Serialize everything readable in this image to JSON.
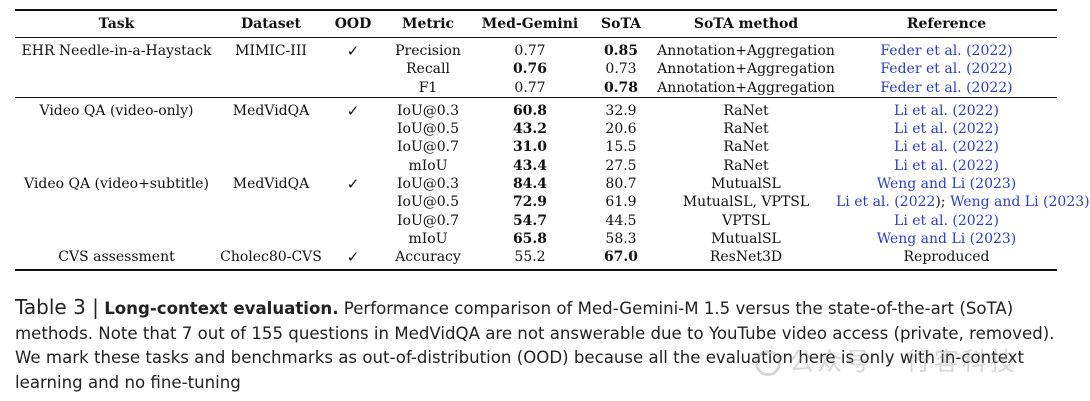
{
  "table": {
    "headers": {
      "task": "Task",
      "dataset": "Dataset",
      "ood": "OOD",
      "metric": "Metric",
      "med_gemini": "Med-Gemini",
      "sota": "SoTA",
      "sota_method": "SoTA method",
      "reference": "Reference"
    },
    "rows": [
      {
        "task": "EHR Needle-in-a-Haystack",
        "dataset": "MIMIC-III",
        "ood": "✓",
        "metric": "Precision",
        "med_gemini": "0.77",
        "sota": "0.85",
        "method": "Annotation+Aggregation",
        "ref_author": "Feder et al. (",
        "ref_year": "2022",
        "ref_close": ")"
      },
      {
        "task": "",
        "dataset": "",
        "ood": "",
        "metric": "Recall",
        "med_gemini": "0.76",
        "sota": "0.73",
        "method": "Annotation+Aggregation",
        "ref_author": "Feder et al. (",
        "ref_year": "2022",
        "ref_close": ")"
      },
      {
        "task": "",
        "dataset": "",
        "ood": "",
        "metric": "F1",
        "med_gemini": "0.77",
        "sota": "0.78",
        "method": "Annotation+Aggregation",
        "ref_author": "Feder et al. (",
        "ref_year": "2022",
        "ref_close": ")"
      },
      {
        "task": "Video QA (video-only)",
        "dataset": "MedVidQA",
        "ood": "✓",
        "metric": "IoU@0.3",
        "med_gemini": "60.8",
        "sota": "32.9",
        "method": "RaNet",
        "ref_author": "Li et al. (",
        "ref_year": "2022",
        "ref_close": ")"
      },
      {
        "task": "",
        "dataset": "",
        "ood": "",
        "metric": "IoU@0.5",
        "med_gemini": "43.2",
        "sota": "20.6",
        "method": "RaNet",
        "ref_author": "Li et al. (",
        "ref_year": "2022",
        "ref_close": ")"
      },
      {
        "task": "",
        "dataset": "",
        "ood": "",
        "metric": "IoU@0.7",
        "med_gemini": "31.0",
        "sota": "15.5",
        "method": "RaNet",
        "ref_author": "Li et al. (",
        "ref_year": "2022",
        "ref_close": ")"
      },
      {
        "task": "",
        "dataset": "",
        "ood": "",
        "metric": "mIoU",
        "med_gemini": "43.4",
        "sota": "27.5",
        "method": "RaNet",
        "ref_author": "Li et al. (",
        "ref_year": "2022",
        "ref_close": ")"
      },
      {
        "task": "Video QA (video+subtitle)",
        "dataset": "MedVidQA",
        "ood": "✓",
        "metric": "IoU@0.3",
        "med_gemini": "84.4",
        "sota": "80.7",
        "method": "MutualSL",
        "ref_author": "Weng and Li (",
        "ref_year": "2023",
        "ref_close": ")"
      },
      {
        "task": "",
        "dataset": "",
        "ood": "",
        "metric": "IoU@0.5",
        "med_gemini": "72.9",
        "sota": "61.9",
        "method": "MutualSL, VPTSL",
        "ref_author": "Li et al. (",
        "ref_year": "2022",
        "ref_close": "); ",
        "ref2_author": "Weng and Li (",
        "ref2_year": "2023",
        "ref2_close": ")"
      },
      {
        "task": "",
        "dataset": "",
        "ood": "",
        "metric": "IoU@0.7",
        "med_gemini": "54.7",
        "sota": "44.5",
        "method": "VPTSL",
        "ref_author": "Li et al. (",
        "ref_year": "2022",
        "ref_close": ")"
      },
      {
        "task": "",
        "dataset": "",
        "ood": "",
        "metric": "mIoU",
        "med_gemini": "65.8",
        "sota": "58.3",
        "method": "MutualSL",
        "ref_author": "Weng and Li (",
        "ref_year": "2023",
        "ref_close": ")"
      },
      {
        "task": "CVS assessment",
        "dataset": "Cholec80-CVS",
        "ood": "✓",
        "metric": "Accuracy",
        "med_gemini": "55.2",
        "sota": "67.0",
        "method": "ResNet3D",
        "ref_plain": "Reproduced"
      }
    ]
  },
  "caption": {
    "lead": "Table 3 |",
    "bold": "Long-context evaluation.",
    "text": " Performance comparison of Med-Gemini-M 1.5 versus the state-of-the-art (SoTA) methods. Note that 7 out of 155 questions in MedVidQA are not answerable due to YouTube video access (private, removed). We mark these tasks and benchmarks as out-of-distribution (OOD) because all the evaluation here is only with in-context learning and no fine-tuning"
  },
  "watermark": {
    "text": "公众号 · 行客科技",
    "icon": "wechat-logo-icon"
  }
}
